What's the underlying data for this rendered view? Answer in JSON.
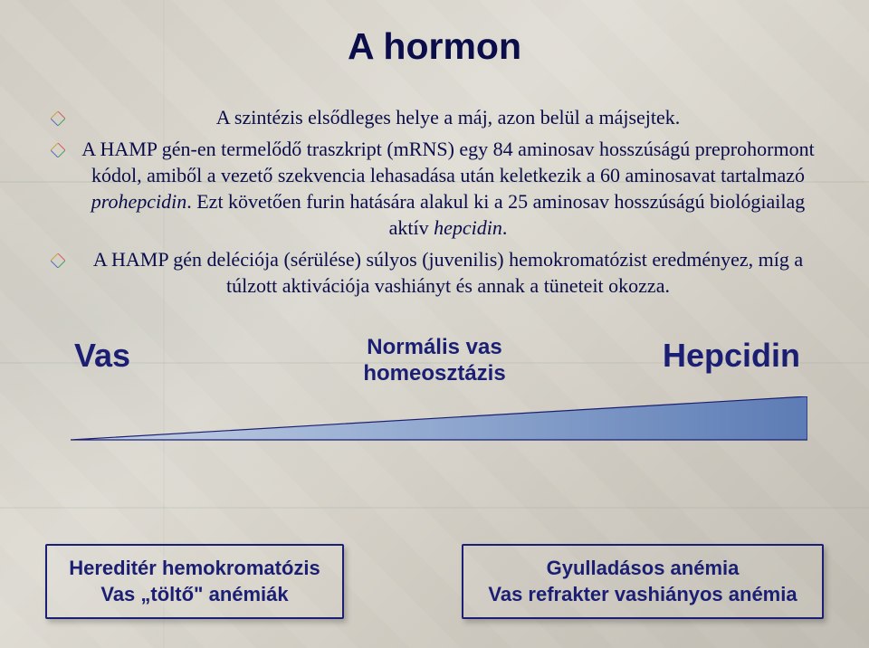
{
  "title": "A hormon",
  "bullets": [
    {
      "text": "A szintézis elsődleges helye a máj, azon belül a májsejtek."
    },
    {
      "text": "A HAMP gén-en termelődő traszkript (mRNS) egy 84 aminosav hosszúságú preprohormont kódol, amiből a vezető szekvencia lehasadása után keletkezik a 60 aminosavat tartalmazó <i>prohepcidin</i>. Ezt követően furin hatására alakul ki a 25 aminosav hosszúságú biológiailag aktív <i>hepcidin</i>."
    },
    {
      "text": "A HAMP gén deléciója (sérülése) súlyos (juvenilis) hemokromatózist eredményez, míg a túlzott aktivációja vashiányt és annak a tüneteit okozza."
    }
  ],
  "balance": {
    "left": "Vas",
    "mid_line1": "Normális vas",
    "mid_line2": "homeosztázis",
    "right": "Hepcidin"
  },
  "wedge": {
    "fill_left": "#a7b9d8",
    "fill_right": "#5d7cb5",
    "stroke": "#1b1f73"
  },
  "diamond": {
    "line1": "#db5a5a",
    "line2": "#4aa05a",
    "line3": "#4f6fc2",
    "line4": "#caa23e"
  },
  "boxes": {
    "left_line1": "Hereditér hemokromatózis",
    "left_line2": "Vas „töltő\" anémiák",
    "right_line1": "Gyulladásos anémia",
    "right_line2": "Vas refrakter vashiányos anémia",
    "border": "#1b1f73",
    "text_color": "#1b1f73"
  },
  "colors": {
    "title": "#0a0d4a",
    "body": "#0a0d4a"
  }
}
